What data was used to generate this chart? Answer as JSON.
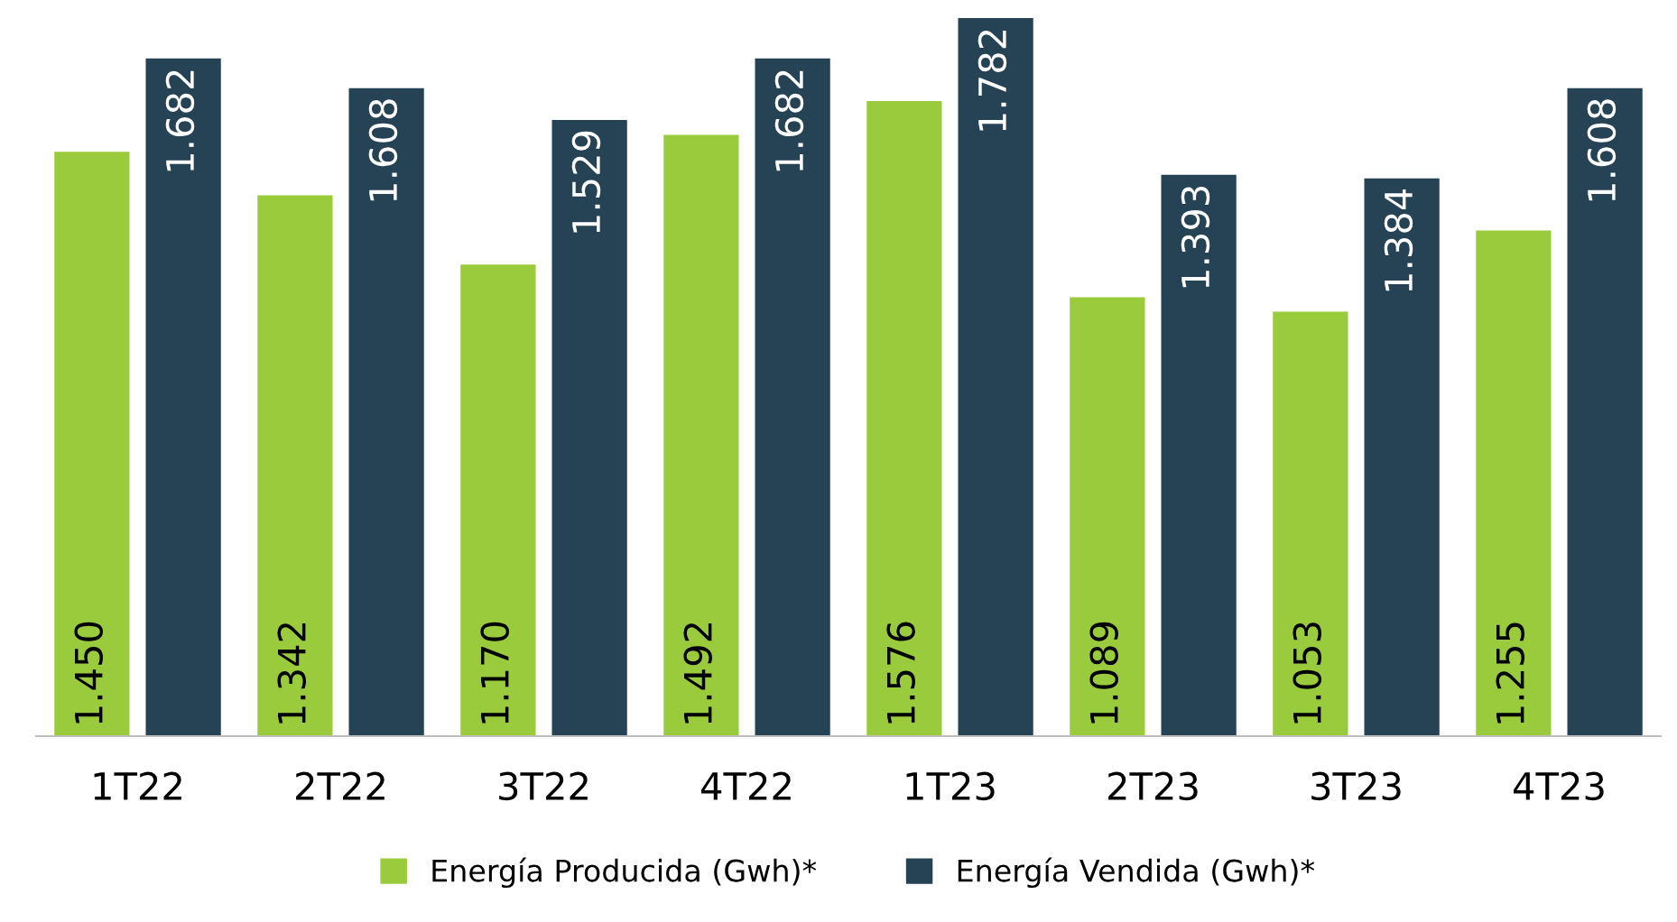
{
  "chart_data": {
    "type": "bar",
    "categories": [
      "1T22",
      "2T22",
      "3T22",
      "4T22",
      "1T23",
      "2T23",
      "3T23",
      "4T23"
    ],
    "series": [
      {
        "name": "Energía Producida (Gwh)*",
        "color": "#9acb3c",
        "values": [
          1450,
          1342,
          1170,
          1492,
          1576,
          1089,
          1053,
          1255
        ],
        "value_labels": [
          "1.450",
          "1.342",
          "1.170",
          "1.492",
          "1.576",
          "1.089",
          "1.053",
          "1.255"
        ]
      },
      {
        "name": "Energía Vendida (Gwh)*",
        "color": "#264356",
        "values": [
          1682,
          1608,
          1529,
          1682,
          1782,
          1393,
          1384,
          1608
        ],
        "value_labels": [
          "1.682",
          "1.608",
          "1.529",
          "1.682",
          "1.782",
          "1.393",
          "1.384",
          "1.608"
        ]
      }
    ],
    "legend": "bottom"
  }
}
